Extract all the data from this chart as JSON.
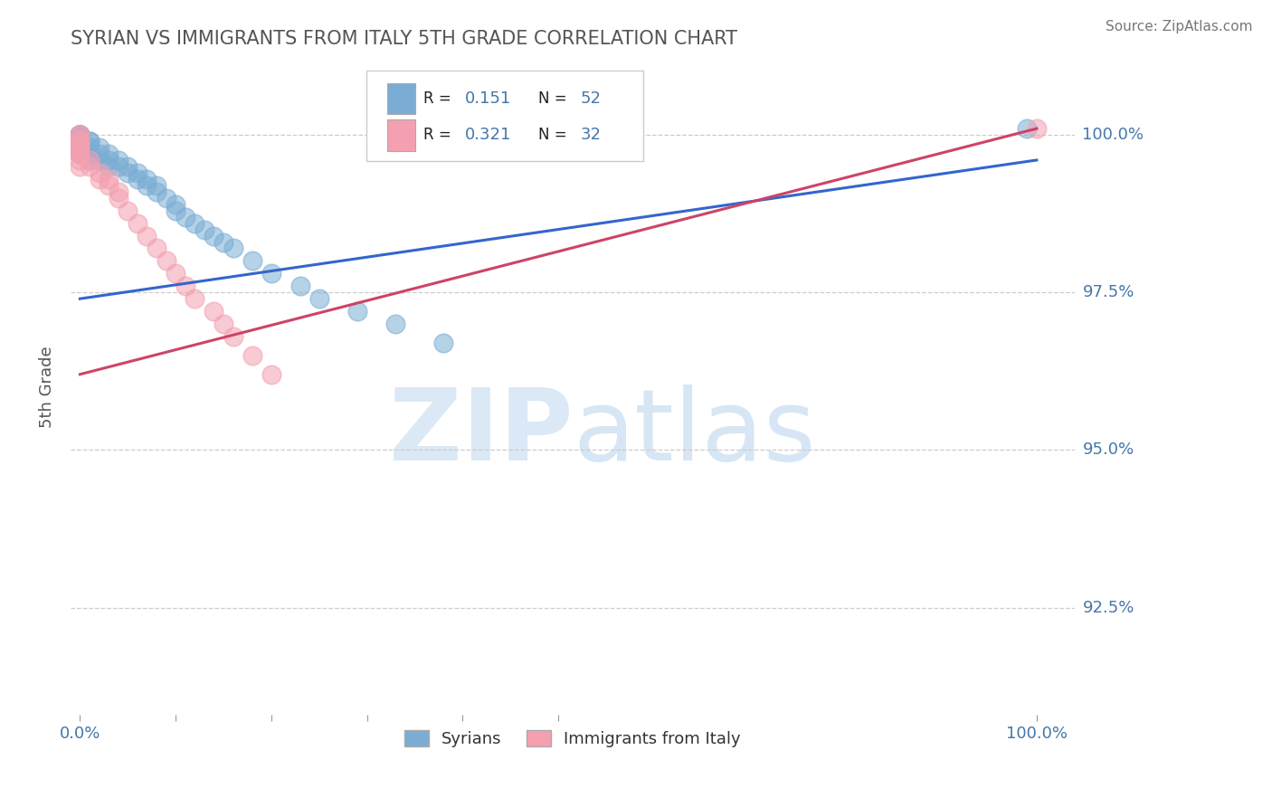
{
  "title": "SYRIAN VS IMMIGRANTS FROM ITALY 5TH GRADE CORRELATION CHART",
  "source": "Source: ZipAtlas.com",
  "ylabel": "5th Grade",
  "x_ticks": [
    0.0,
    0.1,
    0.2,
    0.3,
    0.4,
    0.5,
    1.0
  ],
  "y_ticks": [
    0.925,
    0.95,
    0.975,
    1.0
  ],
  "y_tick_labels_right": [
    "92.5%",
    "95.0%",
    "97.5%",
    "100.0%"
  ],
  "xlim": [
    -0.01,
    1.04
  ],
  "ylim": [
    0.908,
    1.012
  ],
  "title_color": "#555555",
  "tick_color": "#4477aa",
  "grid_color": "#cccccc",
  "background_color": "#ffffff",
  "syrians_color": "#7badd4",
  "italy_color": "#f4a0b0",
  "syrians_edge": "#5590bb",
  "italy_edge": "#e07090",
  "trendline_blue_x0": 0.0,
  "trendline_blue_x1": 1.0,
  "trendline_blue_y0": 0.974,
  "trendline_blue_y1": 0.996,
  "trendline_pink_x0": 0.0,
  "trendline_pink_x1": 1.0,
  "trendline_pink_y0": 0.962,
  "trendline_pink_y1": 1.001,
  "syrians_x": [
    0.0,
    0.0,
    0.0,
    0.0,
    0.0,
    0.0,
    0.0,
    0.0,
    0.0,
    0.0,
    0.0,
    0.0,
    0.0,
    0.01,
    0.01,
    0.01,
    0.01,
    0.01,
    0.01,
    0.02,
    0.02,
    0.02,
    0.03,
    0.03,
    0.03,
    0.04,
    0.04,
    0.05,
    0.05,
    0.06,
    0.06,
    0.07,
    0.07,
    0.08,
    0.08,
    0.09,
    0.1,
    0.1,
    0.11,
    0.12,
    0.13,
    0.14,
    0.15,
    0.16,
    0.18,
    0.2,
    0.23,
    0.25,
    0.29,
    0.33,
    0.38,
    0.99
  ],
  "syrians_y": [
    1.0,
    1.0,
    1.0,
    1.0,
    1.0,
    1.0,
    1.0,
    1.0,
    0.999,
    0.999,
    0.999,
    0.998,
    0.997,
    0.999,
    0.999,
    0.998,
    0.997,
    0.997,
    0.996,
    0.998,
    0.997,
    0.996,
    0.997,
    0.996,
    0.995,
    0.996,
    0.995,
    0.995,
    0.994,
    0.994,
    0.993,
    0.993,
    0.992,
    0.992,
    0.991,
    0.99,
    0.989,
    0.988,
    0.987,
    0.986,
    0.985,
    0.984,
    0.983,
    0.982,
    0.98,
    0.978,
    0.976,
    0.974,
    0.972,
    0.97,
    0.967,
    1.001
  ],
  "italy_x": [
    0.0,
    0.0,
    0.0,
    0.0,
    0.0,
    0.0,
    0.0,
    0.0,
    0.0,
    0.0,
    0.01,
    0.01,
    0.02,
    0.02,
    0.03,
    0.03,
    0.04,
    0.04,
    0.05,
    0.06,
    0.07,
    0.08,
    0.09,
    0.1,
    0.11,
    0.12,
    0.14,
    0.15,
    0.16,
    0.18,
    0.2,
    1.0
  ],
  "italy_y": [
    1.0,
    1.0,
    0.999,
    0.999,
    0.998,
    0.998,
    0.997,
    0.997,
    0.996,
    0.995,
    0.996,
    0.995,
    0.994,
    0.993,
    0.993,
    0.992,
    0.991,
    0.99,
    0.988,
    0.986,
    0.984,
    0.982,
    0.98,
    0.978,
    0.976,
    0.974,
    0.972,
    0.97,
    0.968,
    0.965,
    0.962,
    1.001
  ]
}
